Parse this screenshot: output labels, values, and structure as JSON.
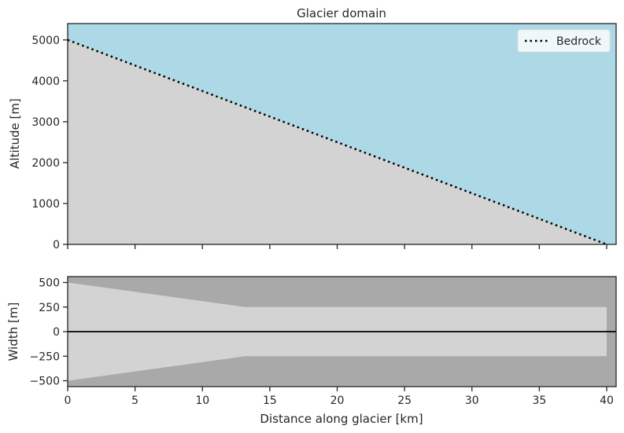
{
  "chart_data": [
    {
      "type": "area",
      "title": "Glacier domain",
      "xlabel": "",
      "ylabel": "Altitude [m]",
      "xlim": [
        0,
        40.7
      ],
      "ylim": [
        0,
        5400
      ],
      "x_ticks": [
        0,
        5,
        10,
        15,
        20,
        25,
        30,
        35,
        40
      ],
      "y_ticks": [
        0,
        1000,
        2000,
        3000,
        4000,
        5000
      ],
      "y_tick_labels": [
        "0",
        "1000",
        "2000",
        "3000",
        "4000",
        "5000"
      ],
      "background_color": "#add8e6",
      "fill_color": "#d3d3d3",
      "series": [
        {
          "name": "Bedrock",
          "x": [
            0,
            40
          ],
          "y": [
            5000,
            0
          ],
          "style": "dotted",
          "color": "#000000"
        }
      ],
      "legend": {
        "placement": "top-right",
        "entries": [
          "Bedrock"
        ]
      }
    },
    {
      "type": "area",
      "title": "",
      "xlabel": "Distance along glacier [km]",
      "ylabel": "Width [m]",
      "xlim": [
        0,
        40.7
      ],
      "ylim": [
        -560,
        560
      ],
      "x_ticks": [
        0,
        5,
        10,
        15,
        20,
        25,
        30,
        35,
        40
      ],
      "x_tick_labels": [
        "0",
        "5",
        "10",
        "15",
        "20",
        "25",
        "30",
        "35",
        "40"
      ],
      "y_ticks": [
        -500,
        -250,
        0,
        250,
        500
      ],
      "y_tick_labels": [
        "−500",
        "−250",
        "0",
        "250",
        "500"
      ],
      "background_color": "#a9a9a9",
      "fill_color": "#d3d3d3",
      "series": [
        {
          "name": "",
          "x": [
            0,
            13.2,
            40
          ],
          "y_upper": [
            500,
            250,
            250
          ],
          "y_lower": [
            -500,
            -250,
            -250
          ]
        }
      ],
      "center_line": {
        "y": 0,
        "color": "#000000"
      }
    }
  ]
}
